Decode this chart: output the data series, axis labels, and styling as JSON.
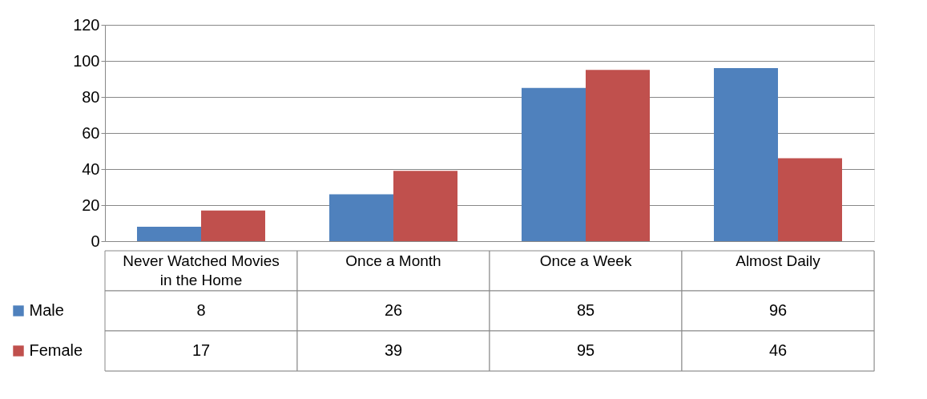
{
  "chart_data": {
    "type": "bar",
    "categories": [
      "Never Watched Movies in the Home",
      "Once a Month",
      "Once a Week",
      "Almost Daily"
    ],
    "series": [
      {
        "name": "Male",
        "color": "#4f81bd",
        "values": [
          8,
          26,
          85,
          96
        ]
      },
      {
        "name": "Female",
        "color": "#c0504d",
        "values": [
          17,
          39,
          95,
          46
        ]
      }
    ],
    "ylim": [
      0,
      120
    ],
    "yticks": [
      0,
      20,
      40,
      60,
      80,
      100,
      120
    ],
    "grid": "y",
    "legend": "bottom left",
    "data_labels": true
  }
}
